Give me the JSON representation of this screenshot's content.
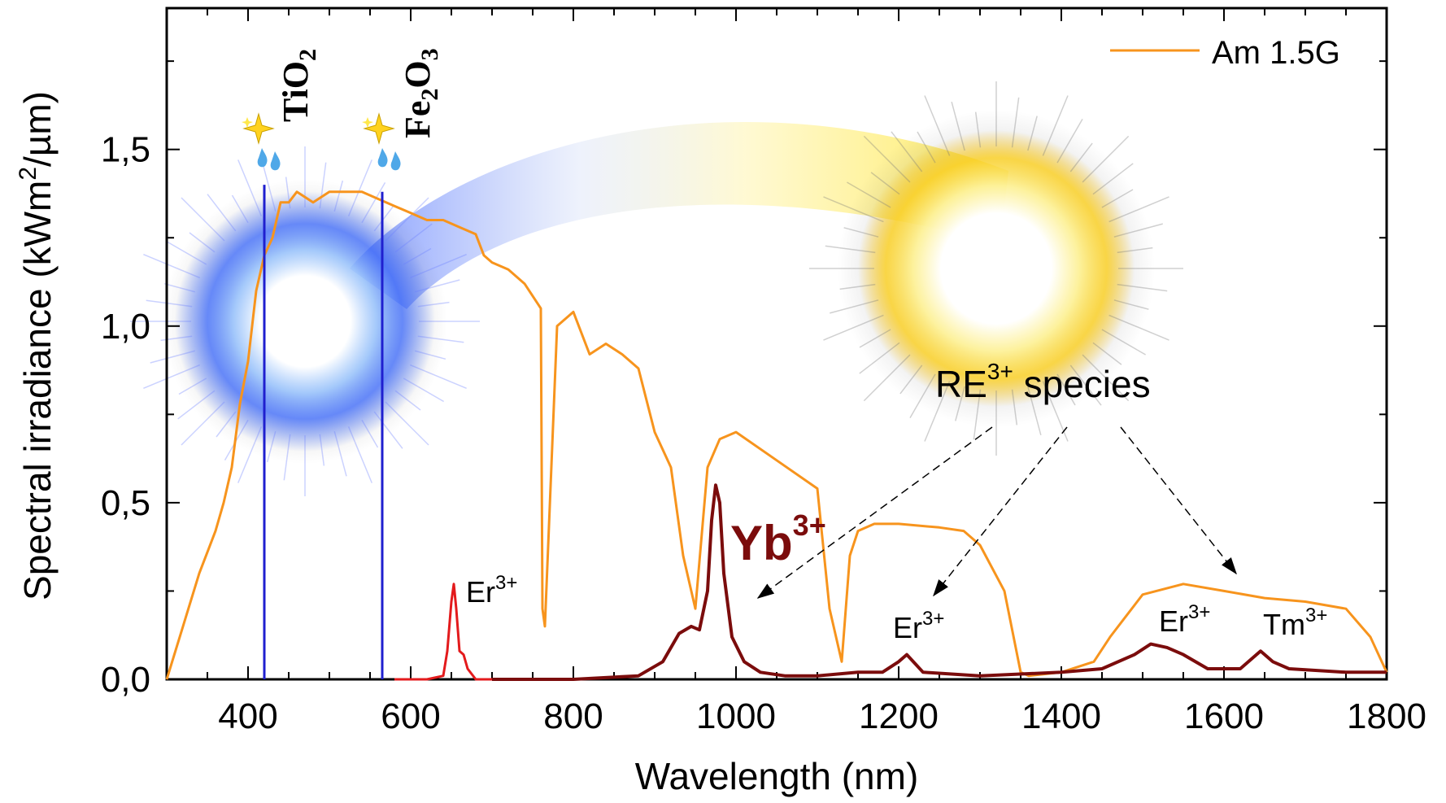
{
  "chart_data": {
    "type": "line",
    "xlabel": "Wavelength (nm)",
    "ylabel_parts": [
      "Spectral irradiance (kWm",
      "2",
      "/µm)"
    ],
    "xlim": [
      300,
      1800
    ],
    "ylim": [
      0,
      1.9
    ],
    "x_ticks": [
      400,
      600,
      800,
      1000,
      1200,
      1400,
      1600,
      1800
    ],
    "y_ticks": [
      "0,0",
      "0,5",
      "1,0",
      "1,5"
    ],
    "y_tick_values": [
      0,
      0.5,
      1.0,
      1.5
    ],
    "grid": false,
    "legend": {
      "position": "top-right",
      "entries": [
        {
          "name": "Am 1.5G",
          "color": "#F7941D"
        }
      ]
    },
    "series": [
      {
        "name": "Am 1.5G",
        "color": "#F7941D",
        "x": [
          300,
          320,
          340,
          360,
          370,
          380,
          390,
          400,
          410,
          420,
          430,
          440,
          450,
          460,
          480,
          500,
          520,
          540,
          560,
          580,
          600,
          620,
          640,
          660,
          680,
          690,
          700,
          720,
          740,
          760,
          762,
          765,
          780,
          800,
          820,
          840,
          860,
          880,
          900,
          920,
          935,
          950,
          965,
          980,
          1000,
          1050,
          1100,
          1115,
          1130,
          1140,
          1150,
          1170,
          1200,
          1250,
          1280,
          1300,
          1330,
          1350,
          1360,
          1400,
          1440,
          1460,
          1480,
          1500,
          1550,
          1600,
          1650,
          1700,
          1750,
          1780,
          1800
        ],
        "y": [
          0.0,
          0.15,
          0.3,
          0.42,
          0.5,
          0.6,
          0.78,
          0.9,
          1.1,
          1.2,
          1.25,
          1.35,
          1.35,
          1.38,
          1.35,
          1.38,
          1.38,
          1.38,
          1.36,
          1.34,
          1.32,
          1.3,
          1.3,
          1.28,
          1.26,
          1.2,
          1.18,
          1.16,
          1.12,
          1.05,
          0.2,
          0.15,
          1.0,
          1.04,
          0.92,
          0.95,
          0.92,
          0.88,
          0.7,
          0.6,
          0.35,
          0.2,
          0.6,
          0.68,
          0.7,
          0.62,
          0.54,
          0.2,
          0.05,
          0.35,
          0.42,
          0.44,
          0.44,
          0.43,
          0.42,
          0.38,
          0.25,
          0.02,
          0.01,
          0.02,
          0.05,
          0.12,
          0.18,
          0.24,
          0.27,
          0.25,
          0.23,
          0.22,
          0.2,
          0.12,
          0.02
        ]
      },
      {
        "name": "Er3+ (visible)",
        "color": "#E31A1C",
        "x": [
          580,
          620,
          640,
          645,
          650,
          653,
          656,
          660,
          665,
          670,
          680,
          700
        ],
        "y": [
          0.0,
          0.0,
          0.01,
          0.08,
          0.22,
          0.27,
          0.2,
          0.08,
          0.07,
          0.03,
          0.0,
          0.0
        ]
      },
      {
        "name": "Yb3+",
        "color": "#7B0C0C",
        "x": [
          700,
          800,
          880,
          910,
          930,
          945,
          955,
          965,
          970,
          975,
          980,
          985,
          995,
          1010,
          1030,
          1060,
          1100,
          1150,
          1180,
          1200,
          1210,
          1230,
          1300,
          1400,
          1450,
          1490,
          1510,
          1530,
          1550,
          1580,
          1620,
          1645,
          1660,
          1680,
          1750,
          1800
        ],
        "y": [
          0.0,
          0.0,
          0.01,
          0.05,
          0.13,
          0.15,
          0.14,
          0.25,
          0.45,
          0.55,
          0.5,
          0.3,
          0.12,
          0.05,
          0.02,
          0.01,
          0.01,
          0.02,
          0.02,
          0.05,
          0.07,
          0.02,
          0.01,
          0.02,
          0.03,
          0.07,
          0.1,
          0.09,
          0.07,
          0.03,
          0.03,
          0.08,
          0.05,
          0.03,
          0.02,
          0.02
        ]
      }
    ],
    "vertical_markers": [
      {
        "x": 420,
        "label": "TiO",
        "sub": "2",
        "color": "#1F1FCF",
        "y_top": 1.4
      },
      {
        "x": 565,
        "label": "Fe",
        "sub1": "2",
        "mid": "O",
        "sub2": "3",
        "color": "#1F1FCF",
        "y_top": 1.38
      }
    ],
    "annotations": {
      "re_species": {
        "main": "RE",
        "sup": "3+",
        "tail": " species"
      },
      "yb": {
        "main": "Yb",
        "sup": "3+"
      },
      "er_visible": {
        "main": "Er",
        "sup": "3+"
      },
      "er_1200": {
        "main": "Er",
        "sup": "3+"
      },
      "er_1530": {
        "main": "Er",
        "sup": "3+"
      },
      "tm": {
        "main": "Tm",
        "sup": "3+"
      }
    },
    "colors": {
      "am15g": "#F7941D",
      "marker": "#1F1FCF",
      "yb": "#7B0C0C",
      "er_red": "#E31A1C",
      "sun_yellow": "#FFE84A",
      "blue_glow": "#3D6BFF"
    }
  }
}
